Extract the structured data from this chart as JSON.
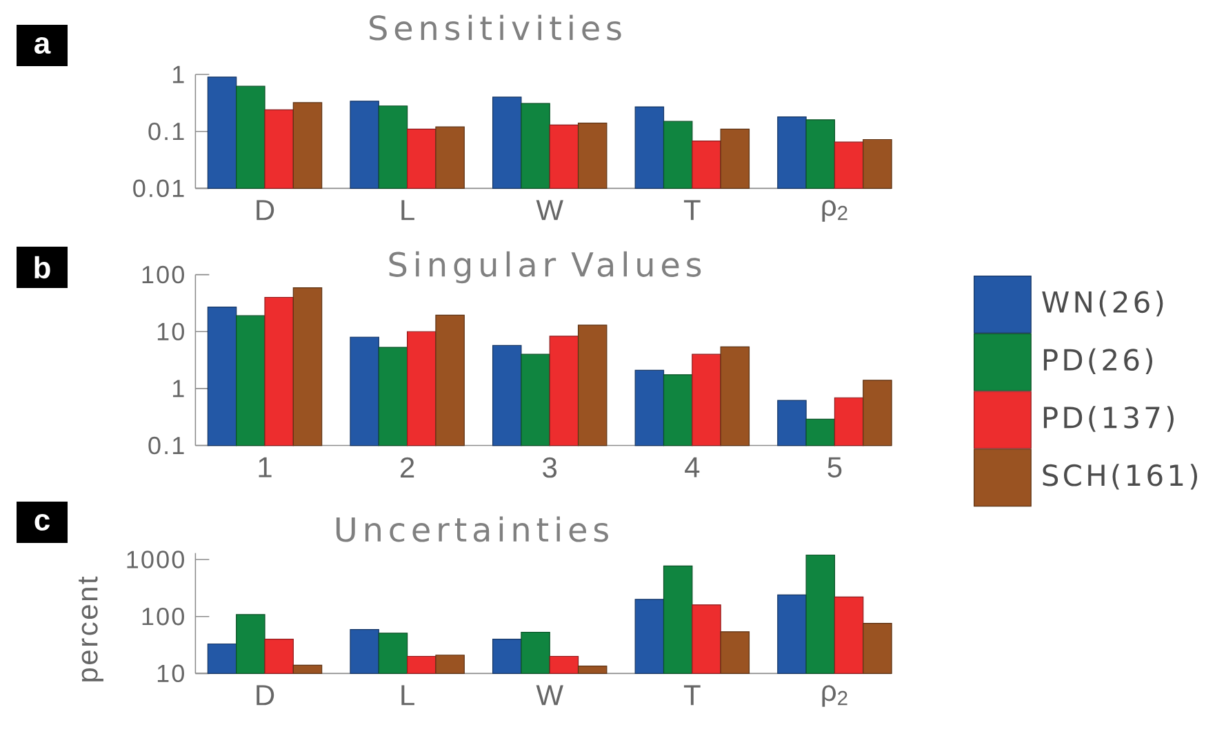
{
  "chart_data": [
    {
      "type": "bar",
      "title": "Sensitivities",
      "annotations": [
        "a"
      ],
      "categories": [
        "D",
        "L",
        "W",
        "T",
        "ρ$_{2}$"
      ],
      "series": [
        {
          "color": "#2358a6",
          "values": [
            0.9,
            0.34,
            0.4,
            0.27,
            0.18
          ]
        },
        {
          "color": "#108540",
          "values": [
            0.62,
            0.28,
            0.31,
            0.15,
            0.16
          ]
        },
        {
          "color": "#ed2d2e",
          "values": [
            0.24,
            0.11,
            0.13,
            0.068,
            0.065
          ]
        },
        {
          "color": "#9a5322",
          "values": [
            0.32,
            0.12,
            0.14,
            0.11,
            0.072
          ]
        }
      ],
      "log": true,
      "ylim": [
        0.01,
        1
      ],
      "yticks": [
        0.01,
        0.1,
        1
      ]
    },
    {
      "type": "bar",
      "title": "Singular Values",
      "annotations": [
        "b"
      ],
      "categories": [
        "1",
        "2",
        "3",
        "4",
        "5"
      ],
      "series": [
        {
          "name": "WN(26)",
          "color": "#2358a6",
          "values": [
            27,
            8,
            5.7,
            2.1,
            0.62
          ]
        },
        {
          "name": "PD(26)",
          "color": "#108540",
          "values": [
            19,
            5.3,
            4,
            1.75,
            0.29
          ]
        },
        {
          "name": "PD(137)",
          "color": "#ed2d2e",
          "values": [
            40,
            10,
            8.3,
            4,
            0.69
          ]
        },
        {
          "name": "SCH(161)",
          "color": "#9a5322",
          "values": [
            59,
            19.5,
            13,
            5.4,
            1.4
          ]
        }
      ],
      "log": true,
      "ylim": [
        0.1,
        100
      ],
      "yticks": [
        0.1,
        1,
        10,
        100
      ],
      "legend": "right"
    },
    {
      "type": "bar",
      "title": "Uncertainties",
      "ylabel": "percent",
      "annotations": [
        "c"
      ],
      "categories": [
        "D",
        "L",
        "W",
        "T",
        "ρ$_{2}$"
      ],
      "series": [
        {
          "color": "#2358a6",
          "values": [
            33,
            59,
            40,
            200,
            240
          ]
        },
        {
          "color": "#108540",
          "values": [
            108,
            51,
            53,
            770,
            1200
          ]
        },
        {
          "color": "#ed2d2e",
          "values": [
            40,
            20,
            20,
            160,
            220
          ]
        },
        {
          "color": "#9a5322",
          "values": [
            14,
            21,
            13.5,
            54,
            76
          ]
        }
      ],
      "log": true,
      "ylim": [
        10,
        1300
      ],
      "yticks": [
        10,
        100,
        1000
      ]
    }
  ]
}
